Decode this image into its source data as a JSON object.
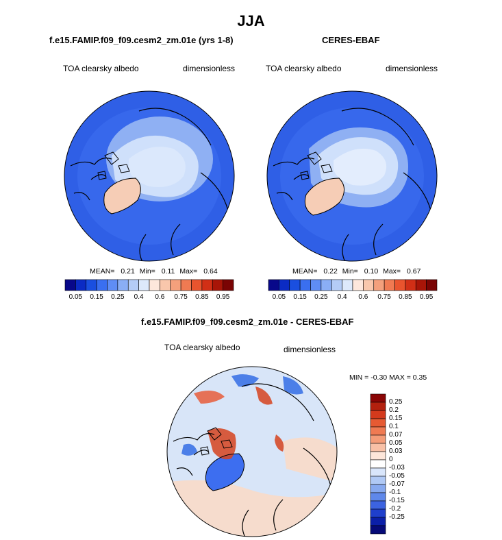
{
  "figure": {
    "title": "JJA"
  },
  "panels": {
    "model": {
      "title": "f.e15.FAMIP.f09_f09.cesm2_zm.01e (yrs 1-8)",
      "variable": "TOA clearsky albedo",
      "units": "dimensionless",
      "stats": {
        "mean_label": "MEAN=",
        "mean": "0.21",
        "min_label": "Min=",
        "min": "0.11",
        "max_label": "Max=",
        "max": "0.64"
      }
    },
    "obs": {
      "title": "CERES-EBAF",
      "variable": "TOA clearsky albedo",
      "units": "dimensionless",
      "stats": {
        "mean_label": "MEAN=",
        "mean": "0.22",
        "min_label": "Min=",
        "min": "0.10",
        "max_label": "Max=",
        "max": "0.67"
      }
    },
    "diff": {
      "title": "f.e15.FAMIP.f09_f09.cesm2_zm.01e - CERES-EBAF",
      "variable": "TOA clearsky albedo",
      "units": "dimensionless",
      "stats": {
        "text": "MIN =  -0.30 MAX =   0.35"
      }
    }
  },
  "colorbars": {
    "abs": {
      "orientation": "horizontal",
      "labels": [
        "0.05",
        "0.15",
        "0.25",
        "0.4",
        "0.6",
        "0.75",
        "0.85",
        "0.95"
      ],
      "colors": [
        "#08088a",
        "#0b2bc4",
        "#1a4fe0",
        "#3a6ff0",
        "#5f8df5",
        "#8aaef5",
        "#b4ccf7",
        "#dde9fb",
        "#fde7dc",
        "#f9c7ac",
        "#f4a07c",
        "#f07a52",
        "#e9542e",
        "#d12f16",
        "#a81508",
        "#7a0404"
      ]
    },
    "diff": {
      "orientation": "vertical",
      "labels": [
        "0.25",
        "0.2",
        "0.15",
        "0.1",
        "0.07",
        "0.05",
        "0.03",
        "0",
        "-0.03",
        "-0.05",
        "-0.07",
        "-0.1",
        "-0.15",
        "-0.2",
        "-0.25"
      ],
      "colors": [
        "#8a0505",
        "#b3200e",
        "#d43a1c",
        "#e65a32",
        "#ef7a52",
        "#f49c78",
        "#f8c0a6",
        "#fde6da",
        "#ffffff",
        "#d9e6fb",
        "#b0c9f5",
        "#87a9ef",
        "#5f88ea",
        "#3c63e0",
        "#1f3fcc",
        "#0b1fa8",
        "#060a78"
      ]
    }
  },
  "map_colors": {
    "ocean_low": "#2f5fe6",
    "ocean_mid": "#4a7bee",
    "ice_edge": "#8fb0f3",
    "sea_ice": "#cfe0fb",
    "greenland": "#f6cdb6",
    "coastline": "#000000",
    "diff_base": "#d8e5f8",
    "diff_warm": "#f6dccd",
    "diff_red": "#d6431e",
    "diff_blue": "#4c7fe8"
  }
}
